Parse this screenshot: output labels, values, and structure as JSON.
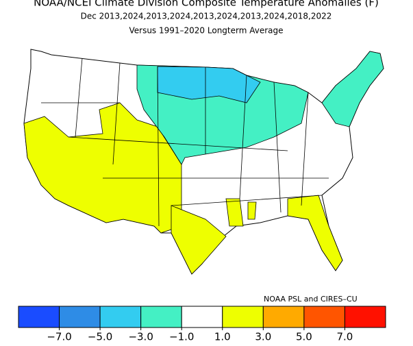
{
  "header": {
    "title": "NOAA/NCEI Climate Division Composite Temperature Anomalies (F)",
    "subtitle": "Dec  2013,2024,2013,2024,2013,2024,2013,2024,2018,2022",
    "baseline": "Versus 1991–2020 Longterm Average"
  },
  "credit": "NOAA PSL and CIRES–CU",
  "colorbar": {
    "colors": [
      "#1a4cff",
      "#2e8ce6",
      "#33ccf0",
      "#44f0c4",
      "#ffffff",
      "#eeff00",
      "#ffaa00",
      "#ff5500",
      "#ff1100"
    ],
    "ticks": [
      {
        "value": -7,
        "label": "−7.0"
      },
      {
        "value": -5,
        "label": "−5.0"
      },
      {
        "value": -3,
        "label": "−3.0"
      },
      {
        "value": -1,
        "label": "−1.0"
      },
      {
        "value": 1,
        "label": "1.0"
      },
      {
        "value": 3,
        "label": "3.0"
      },
      {
        "value": 5,
        "label": "5.0"
      },
      {
        "value": 7,
        "label": "7.0"
      }
    ]
  }
}
